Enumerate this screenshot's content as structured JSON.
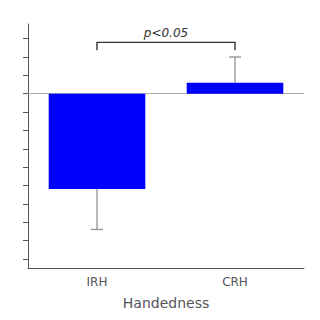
{
  "chart_data": {
    "type": "bar",
    "categories": [
      "IRH",
      "CRH"
    ],
    "values": [
      -0.52,
      0.06
    ],
    "errors_minus": [
      0.22,
      0.0
    ],
    "errors_plus": [
      0.0,
      0.14
    ],
    "color": "#0000FF",
    "xlabel": "Handedness",
    "ylim": [
      -0.95,
      0.38
    ],
    "yticks": [
      -0.9,
      -0.8,
      -0.7,
      -0.6,
      -0.5,
      -0.4,
      -0.3,
      -0.2,
      -0.1,
      0,
      0.1,
      0.2,
      0.3
    ],
    "tick_labels": "x",
    "grid": false,
    "annotations": [
      {
        "text": "p<0.05",
        "from": "IRH",
        "to": "CRH",
        "y": 0.28
      }
    ]
  }
}
